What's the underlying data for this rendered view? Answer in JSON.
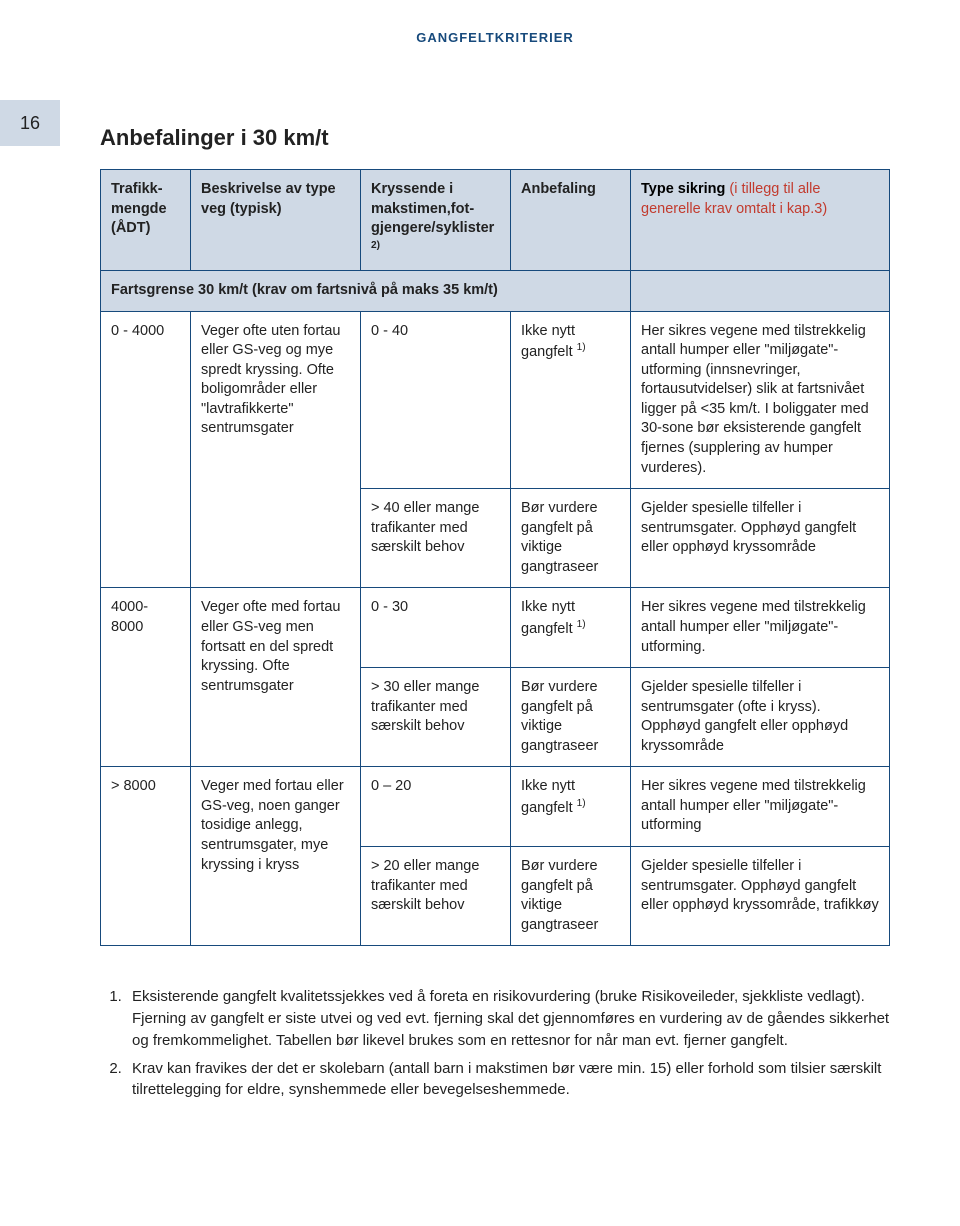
{
  "running_head": "GANGFELTKRITERIER",
  "page_number": "16",
  "title": "Anbefalinger i 30 km/t",
  "header": {
    "col1": "Trafikk­mengde (ÅDT)",
    "col2": "Beskrivelse av type veg (typisk)",
    "col3_pre": "Kryssende i makstimen,fot­gjengere/syklister ",
    "col3_sup": "2)",
    "col4": "Anbefaling",
    "col5_pre": "Type sikring ",
    "col5_red": "(i tillegg til alle generelle krav omtalt i kap.3)"
  },
  "subheader": "Fartsgrense 30 km/t (krav om fartsnivå på maks 35 km/t)",
  "rows": {
    "r1_adt": "0 - 4000",
    "r1_desc": "Veger ofte uten fortau eller GS-veg og mye spredt kryssing. Ofte boligområder eller \"lavtrafikkerte\" sentrumsgater",
    "r1a_cross": "0 - 40",
    "r1a_rec_pre": "Ikke nytt gangfelt ",
    "r1a_rec_sup": "1)",
    "r1a_sec": "Her sikres vegene med tilstrekkelig antall humper eller \"miljøgate\"-utforming (innsnevringer, fortausutvidelser) slik at fartsnivået ligger på <35 km/t. I boliggater med 30-sone bør eksisterende gangfelt fjernes (supplering av humper vurderes).",
    "r1b_cross": "> 40 eller mange trafikanter med særskilt behov",
    "r1b_rec": "Bør vurdere gangfelt på viktige gangtraseer",
    "r1b_sec": "Gjelder spesielle tilfeller i sentrumsgater. Opphøyd gangfelt eller opphøyd kryss­område",
    "r2_adt": "4000-8000",
    "r2_desc": "Veger ofte med fortau eller GS-veg men fortsatt en del spredt kryssing. Ofte sentrumsgater",
    "r2a_cross": "0 - 30",
    "r2a_rec_pre": "Ikke nytt gangfelt ",
    "r2a_rec_sup": "1)",
    "r2a_sec": "Her sikres vegene med tilstrekkelig antall humper eller \"miljøgate\"-utforming.",
    "r2b_cross": "> 30 eller mange trafikanter med særskilt behov",
    "r2b_rec": "Bør vurdere gangfelt på viktige gangtraseer",
    "r2b_sec": "Gjelder spesielle tilfeller i sentrumsgater (ofte i kryss). Opphøyd gangfelt eller opphøyd kryssområde",
    "r3_adt": "> 8000",
    "r3_desc": "Veger med fortau eller GS-veg, noen ganger tosidige anlegg, sentrums­gater, mye kryssing i kryss",
    "r3a_cross": "0 – 20",
    "r3a_rec_pre": "Ikke nytt gangfelt ",
    "r3a_rec_sup": "1)",
    "r3a_sec": "Her sikres vegene med tilstrekkelig antall humper eller \"miljøgate\"-utforming",
    "r3b_cross": "> 20 eller mange trafikanter med særskilt behov",
    "r3b_rec": "Bør vurdere gangfelt på viktige gangtraseer",
    "r3b_sec": "Gjelder spesielle tilfeller i sentrumsgater. Opphøyd gangfelt eller opphøyd kryss­område, trafikkøy"
  },
  "footnotes": {
    "f1": "Eksisterende gangfelt kvalitetssjekkes ved å foreta en risikovurdering (bruke Risikoveileder, sjekkliste vedlagt). Fjerning av gangfelt er siste utvei og ved evt. fjerning skal det gjennomføres en vurdering av de gåendes sikkerhet og fremkommelighet. Tabellen bør likevel brukes som en rettesnor for når man evt. fjerner gangfelt.",
    "f2": "Krav kan fravikes der det er skolebarn (antall barn i makstimen bør være min. 15) eller forhold som tilsier særskilt tilrettelegging for eldre, synshemmede eller bevegelseshemmede."
  },
  "colors": {
    "header_bg": "#cfd9e5",
    "border": "#174a7c",
    "running_head": "#174a7c",
    "red": "#c23b2e"
  }
}
